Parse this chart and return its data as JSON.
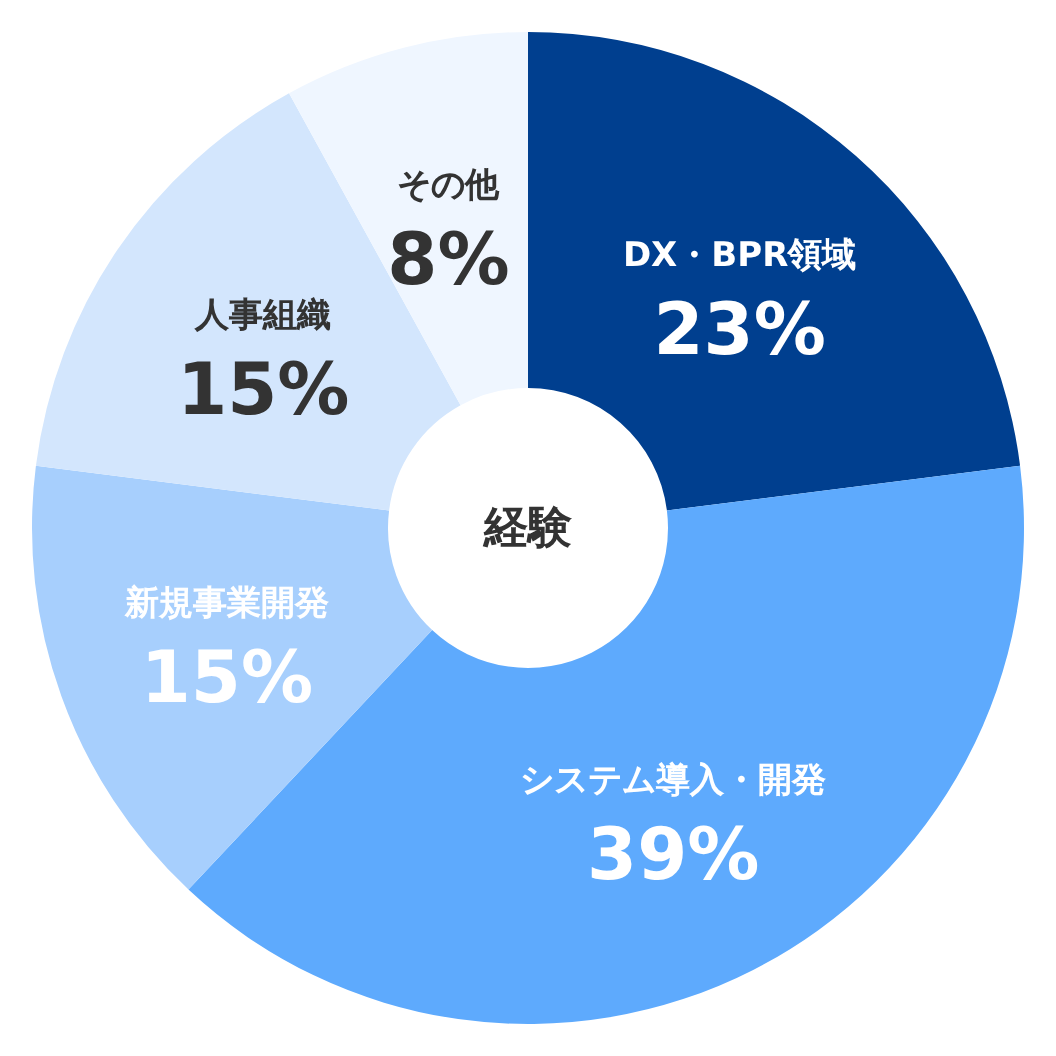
{
  "chart_data": {
    "type": "donut",
    "title": "経験",
    "categories": [
      "DX・BPR領域",
      "システム導入・開発",
      "新規事業開発",
      "人事組織",
      "その他"
    ],
    "values": [
      23,
      39,
      15,
      15,
      8
    ],
    "value_labels": [
      "23%",
      "39%",
      "15%",
      "15%",
      "8%"
    ],
    "colors": [
      "#003f8f",
      "#5eaafd",
      "#a7cffd",
      "#d3e6fd",
      "#eff6ff"
    ]
  }
}
